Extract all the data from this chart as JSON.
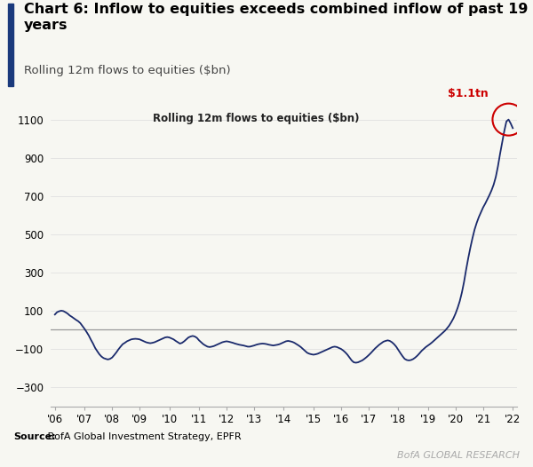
{
  "title_bold": "Chart 6: Inflow to equities exceeds combined inflow of past 19\nyears",
  "subtitle": "Rolling 12m flows to equities ($bn)",
  "inner_label": "Rolling 12m flows to equities ($bn)",
  "annotation": "$1.1tn",
  "source_bold": "Source:",
  "source_rest": " BofA Global Investment Strategy, EPFR",
  "branding": "BofA GLOBAL RESEARCH",
  "ylim": [
    -400,
    1200
  ],
  "yticks": [
    -300,
    -100,
    100,
    300,
    500,
    700,
    900,
    1100
  ],
  "hline_y": 0,
  "line_color": "#1a2a6c",
  "hline_color": "#999999",
  "bg_color": "#f7f7f2",
  "annotation_color": "#cc0000",
  "circle_color": "#cc0000",
  "title_fontsize": 11.5,
  "subtitle_fontsize": 9.5,
  "inner_label_fontsize": 8.5,
  "xtick_labels": [
    "'06",
    "'07",
    "'08",
    "'09",
    "'10",
    "'11",
    "'12",
    "'13",
    "'14",
    "'15",
    "'16",
    "'17",
    "'18",
    "'19",
    "'20",
    "'21",
    "'22"
  ],
  "y_values": [
    80,
    92,
    97,
    100,
    98,
    92,
    85,
    75,
    68,
    60,
    52,
    45,
    35,
    20,
    5,
    -12,
    -30,
    -52,
    -72,
    -95,
    -112,
    -128,
    -140,
    -148,
    -152,
    -155,
    -152,
    -145,
    -132,
    -118,
    -102,
    -88,
    -75,
    -68,
    -60,
    -55,
    -50,
    -48,
    -47,
    -48,
    -50,
    -55,
    -60,
    -65,
    -68,
    -70,
    -68,
    -65,
    -60,
    -55,
    -50,
    -45,
    -40,
    -38,
    -40,
    -45,
    -50,
    -58,
    -65,
    -72,
    -68,
    -60,
    -50,
    -40,
    -35,
    -32,
    -35,
    -42,
    -55,
    -65,
    -75,
    -82,
    -88,
    -90,
    -88,
    -85,
    -80,
    -75,
    -70,
    -65,
    -62,
    -60,
    -62,
    -65,
    -68,
    -72,
    -75,
    -78,
    -80,
    -82,
    -85,
    -88,
    -88,
    -85,
    -82,
    -78,
    -75,
    -73,
    -72,
    -73,
    -75,
    -78,
    -80,
    -82,
    -80,
    -78,
    -75,
    -70,
    -65,
    -60,
    -58,
    -60,
    -63,
    -68,
    -75,
    -82,
    -90,
    -100,
    -110,
    -120,
    -125,
    -128,
    -130,
    -128,
    -125,
    -120,
    -115,
    -110,
    -105,
    -100,
    -95,
    -90,
    -88,
    -90,
    -95,
    -100,
    -108,
    -118,
    -130,
    -145,
    -160,
    -170,
    -172,
    -170,
    -165,
    -160,
    -152,
    -143,
    -133,
    -122,
    -110,
    -98,
    -88,
    -78,
    -70,
    -62,
    -58,
    -55,
    -58,
    -65,
    -75,
    -88,
    -105,
    -122,
    -138,
    -152,
    -158,
    -160,
    -158,
    -153,
    -145,
    -135,
    -123,
    -110,
    -100,
    -90,
    -82,
    -74,
    -65,
    -55,
    -45,
    -35,
    -25,
    -15,
    -5,
    8,
    22,
    40,
    60,
    85,
    115,
    150,
    195,
    250,
    315,
    375,
    430,
    480,
    525,
    560,
    590,
    615,
    640,
    660,
    682,
    705,
    730,
    760,
    800,
    855,
    920,
    980,
    1040,
    1090,
    1100,
    1080,
    1055
  ]
}
